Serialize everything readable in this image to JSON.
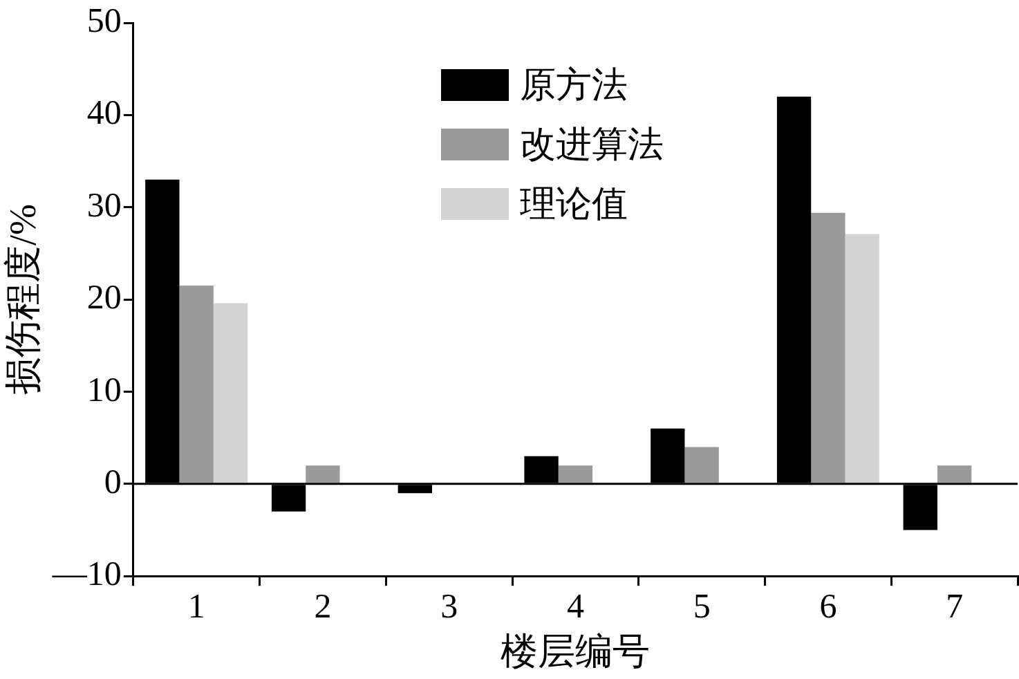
{
  "chart_data": {
    "type": "bar",
    "xlabel": "楼层编号",
    "ylabel": "损伤程度/%",
    "categories": [
      "1",
      "2",
      "3",
      "4",
      "5",
      "6",
      "7"
    ],
    "series": [
      {
        "name": "原方法",
        "color": "#000000",
        "values": [
          33,
          -3,
          -1,
          3,
          6,
          42,
          -5
        ]
      },
      {
        "name": "改进算法",
        "color": "#9a9a9a",
        "values": [
          21.5,
          2,
          0,
          2,
          4,
          29.4,
          2
        ]
      },
      {
        "name": "理论值",
        "color": "#d3d3d3",
        "values": [
          19.6,
          0,
          0,
          0,
          0,
          27.1,
          0
        ]
      }
    ],
    "ylim": [
      -10,
      50
    ],
    "yticks": [
      {
        "value": -10,
        "label": "—10"
      },
      0,
      10,
      20,
      30,
      40,
      50
    ],
    "grid": false,
    "legend": "top",
    "ref_lines": [
      {
        "axis": "y",
        "value": 0,
        "color": "#000000"
      }
    ]
  }
}
